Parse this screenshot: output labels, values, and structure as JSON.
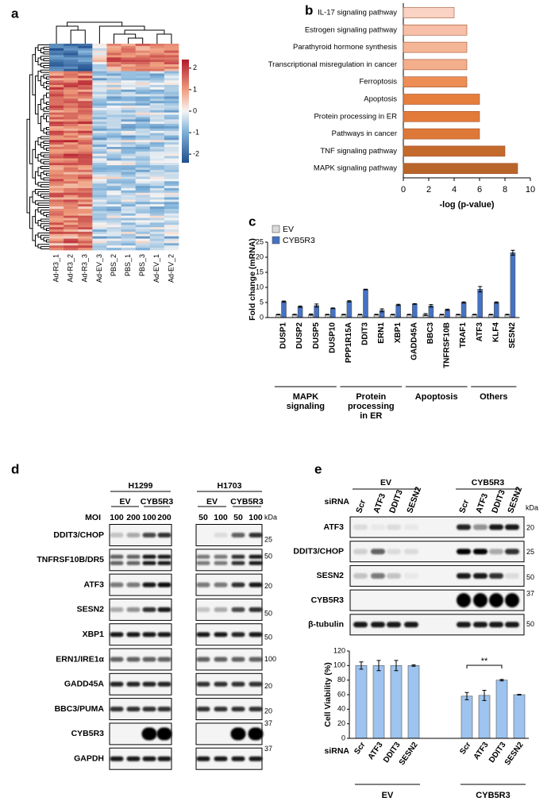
{
  "panel_labels": [
    "a",
    "b",
    "c",
    "d",
    "e"
  ],
  "chart_data": [
    {
      "type": "heatmap",
      "columns": [
        "Ad-R3_1",
        "Ad-R3_2",
        "Ad-R3_3",
        "Ad-EV_3",
        "PBS_2",
        "PBS_1",
        "PBS_3",
        "Ad-EV_1",
        "Ad-EV_2"
      ],
      "clim": [
        -2.4,
        2.4
      ],
      "colorbar_ticks": [
        2,
        1,
        0,
        -1,
        -2
      ]
    },
    {
      "type": "barh",
      "categories": [
        "IL-17 signaling pathway",
        "Estrogen signaling pathway",
        "Parathyroid hormone synthesis",
        "Transcriptional misregulation in cancer",
        "Ferroptosis",
        "Apoptosis",
        "Protein processing in ER",
        "Pathways in cancer",
        "TNF signaling pathway",
        "MAPK signaling pathway"
      ],
      "values": [
        4,
        5,
        5,
        5,
        5,
        6,
        6,
        6,
        8,
        9
      ],
      "colors": [
        "#fbd3c4",
        "#f7bfa7",
        "#f5b698",
        "#f3ae8c",
        "#ec8e55",
        "#e57e3c",
        "#e27b3a",
        "#de7838",
        "#c46a2c",
        "#b9652a"
      ],
      "xlim": [
        0,
        10
      ],
      "xticks": [
        0,
        2,
        4,
        6,
        8,
        10
      ],
      "xlabel": "-log (p-value)"
    },
    {
      "type": "bar",
      "ylabel": "Fold change (mRNA)",
      "ylim": [
        0,
        25
      ],
      "yticks": [
        0,
        5,
        10,
        15,
        20,
        25
      ],
      "legend": "top-left",
      "groups": [
        {
          "label": [
            "MAPK",
            "signaling"
          ],
          "categories": [
            "DUSP1",
            "DUSP2",
            "DUSP5",
            "DUSP10"
          ]
        },
        {
          "label": [
            "Protein",
            "processing",
            "in ER"
          ],
          "categories": [
            "PPP1R15A",
            "DDIT3",
            "ERN1",
            "XBP1"
          ]
        },
        {
          "label": [
            "Apoptosis"
          ],
          "categories": [
            "GADD45A",
            "BBC3",
            "TNFRSF10B",
            "TRAF1"
          ]
        },
        {
          "label": [
            "Others"
          ],
          "categories": [
            "ATF3",
            "KLF4",
            "SESN2"
          ]
        }
      ],
      "series": [
        {
          "name": "EV",
          "color": "#d9d9d9",
          "values": [
            1,
            1,
            1,
            1,
            1,
            1,
            1,
            1,
            1,
            1,
            1,
            1,
            1,
            1,
            1
          ],
          "errors": [
            0.1,
            0.1,
            0.2,
            0.1,
            0.1,
            0.1,
            0.1,
            0.1,
            0.1,
            0.3,
            0.1,
            0.1,
            0.1,
            0.1,
            0.1
          ]
        },
        {
          "name": "CYB5R3",
          "color": "#4472c4",
          "values": [
            5.3,
            3.6,
            4.0,
            3.1,
            5.4,
            9.3,
            2.4,
            4.2,
            4.5,
            3.9,
            2.6,
            5.0,
            9.4,
            5.0,
            21.5
          ],
          "errors": [
            0.2,
            0.2,
            0.5,
            0.1,
            0.2,
            0.1,
            0.5,
            0.2,
            0.1,
            0.4,
            0.2,
            0.2,
            0.9,
            0.2,
            0.8
          ]
        }
      ]
    },
    {
      "type": "bar",
      "ylabel": "Cell Viability (%)",
      "xlabel": "siRNA",
      "ylim": [
        0,
        120
      ],
      "yticks": [
        0,
        20,
        40,
        60,
        80,
        100,
        120
      ],
      "groups": [
        {
          "label": [
            "EV"
          ],
          "categories": [
            "Scr",
            "ATF3",
            "DDIT3",
            "SESN2"
          ]
        },
        {
          "label": [
            "CYB5R3"
          ],
          "categories": [
            "Scr",
            "ATF3",
            "DDIT3",
            "SESN2"
          ]
        }
      ],
      "values": [
        100,
        100,
        100,
        100,
        58,
        59,
        80,
        60
      ],
      "errors": [
        5,
        7,
        7,
        1,
        5,
        7,
        1,
        0.5
      ],
      "color": "#9dc3ee",
      "annotation": "**"
    }
  ],
  "blot_d": {
    "cell_lines": [
      {
        "name": "H1299",
        "groups": [
          "EV",
          "CYB5R3"
        ],
        "doses": [
          100,
          200,
          100,
          200
        ]
      },
      {
        "name": "H1703",
        "groups": [
          "EV",
          "CYB5R3"
        ],
        "doses": [
          50,
          100,
          50,
          100
        ]
      }
    ],
    "dose_label": "MOI",
    "unit": "kDa",
    "rows": [
      {
        "label": "DDIT3/CHOP",
        "kda": 25
      },
      {
        "label": "TNFRSF10B/DR5",
        "kda": 50
      },
      {
        "label": "ATF3",
        "kda": 20
      },
      {
        "label": "SESN2",
        "kda": 50
      },
      {
        "label": "XBP1",
        "kda": 50
      },
      {
        "label": "ERN1/IRE1α",
        "kda": 100
      },
      {
        "label": "GADD45A",
        "kda": 20
      },
      {
        "label": "BBC3/PUMA",
        "kda": 20
      },
      {
        "label": "CYB5R3",
        "kda": 37
      },
      {
        "label": "GAPDH",
        "kda": 37
      }
    ]
  },
  "blot_e": {
    "groups": [
      "EV",
      "CYB5R3"
    ],
    "lane_label": "siRNA",
    "lanes": [
      "Scr",
      "ATF3",
      "DDIT3",
      "SESN2",
      "Scr",
      "ATF3",
      "DDIT3",
      "SESN2"
    ],
    "unit": "kDa",
    "rows": [
      {
        "label": "ATF3",
        "kda": 20
      },
      {
        "label": "DDIT3/CHOP",
        "kda": 25
      },
      {
        "label": "SESN2",
        "kda": 50
      },
      {
        "label": "CYB5R3",
        "kda": 37
      },
      {
        "label": "β-tubulin",
        "kda": 50
      }
    ]
  }
}
